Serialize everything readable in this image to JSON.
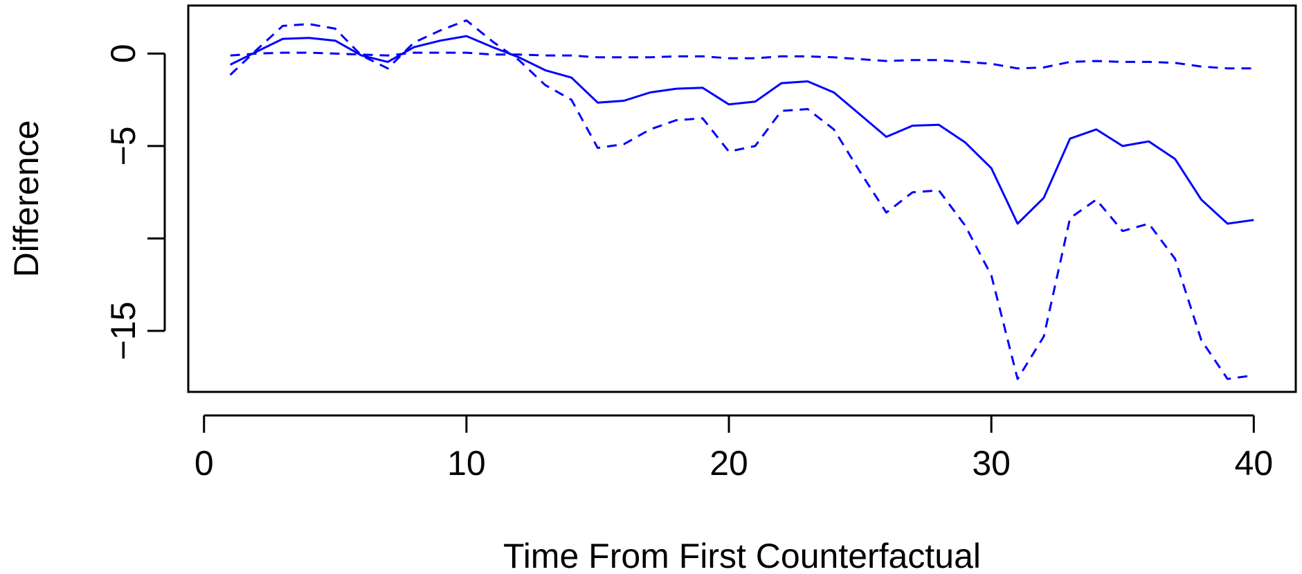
{
  "chart_data": {
    "type": "line",
    "title": "",
    "xlabel": "Time From First Counterfactual",
    "ylabel": "Difference",
    "xlim": [
      -0.6,
      41.6
    ],
    "ylim": [
      -18.3,
      2.6
    ],
    "x_ticks": [
      0,
      10,
      20,
      30,
      40
    ],
    "x_tick_labels": [
      "0",
      "10",
      "20",
      "30",
      "40"
    ],
    "y_ticks": [
      0,
      -5,
      -10,
      -15
    ],
    "y_tick_labels": [
      "0",
      "−5",
      "",
      "−15"
    ],
    "grid": false,
    "legend": null,
    "line_color": "#0000FF",
    "x": [
      1,
      2,
      3,
      4,
      5,
      6,
      7,
      8,
      9,
      10,
      11,
      12,
      13,
      14,
      15,
      16,
      17,
      18,
      19,
      20,
      21,
      22,
      23,
      24,
      25,
      26,
      27,
      28,
      29,
      30,
      31,
      32,
      33,
      34,
      35,
      36,
      37,
      38,
      39,
      40
    ],
    "series": [
      {
        "style": "solid",
        "values": [
          -0.6,
          0.1,
          0.8,
          0.85,
          0.7,
          -0.1,
          -0.45,
          0.35,
          0.7,
          0.95,
          0.35,
          -0.2,
          -0.9,
          -1.3,
          -2.65,
          -2.55,
          -2.1,
          -1.9,
          -1.85,
          -2.75,
          -2.6,
          -1.6,
          -1.5,
          -2.1,
          -3.3,
          -4.5,
          -3.9,
          -3.85,
          -4.8,
          -6.2,
          -9.2,
          -7.8,
          -4.6,
          -4.1,
          -5.0,
          -4.75,
          -5.7,
          -7.9,
          -9.2,
          -9.0
        ]
      },
      {
        "style": "dashed",
        "values": [
          -1.15,
          0.2,
          1.5,
          1.6,
          1.35,
          -0.1,
          -0.8,
          0.6,
          1.25,
          1.8,
          0.65,
          -0.35,
          -1.7,
          -2.5,
          -5.1,
          -4.9,
          -4.1,
          -3.6,
          -3.5,
          -5.3,
          -5.0,
          -3.1,
          -3.0,
          -4.1,
          -6.4,
          -8.6,
          -7.5,
          -7.4,
          -9.3,
          -12.0,
          -17.6,
          -15.3,
          -8.9,
          -7.9,
          -9.6,
          -9.2,
          -11.1,
          -15.5,
          -17.6,
          -17.4
        ]
      },
      {
        "style": "dashed",
        "values": [
          -0.1,
          0.0,
          0.05,
          0.05,
          0.0,
          -0.05,
          -0.1,
          0.05,
          0.05,
          0.05,
          -0.05,
          -0.05,
          -0.1,
          -0.1,
          -0.2,
          -0.2,
          -0.2,
          -0.15,
          -0.15,
          -0.25,
          -0.25,
          -0.15,
          -0.15,
          -0.2,
          -0.3,
          -0.4,
          -0.35,
          -0.35,
          -0.45,
          -0.55,
          -0.8,
          -0.75,
          -0.45,
          -0.4,
          -0.45,
          -0.45,
          -0.5,
          -0.7,
          -0.8,
          -0.8
        ]
      }
    ]
  }
}
